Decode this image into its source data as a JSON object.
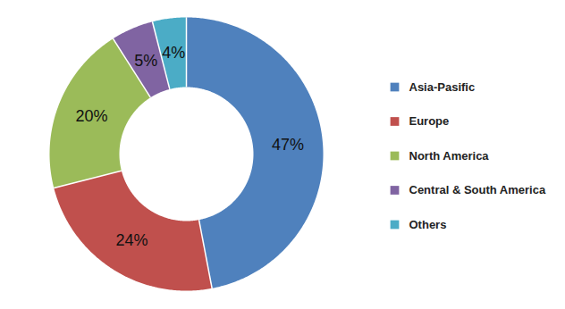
{
  "chart_data": {
    "type": "pie",
    "categories": [
      "Asia-Pasific",
      "Europe",
      "North America",
      "Central & South America",
      "Others"
    ],
    "values": [
      47,
      24,
      20,
      5,
      4
    ],
    "value_labels": [
      "47%",
      "24%",
      "20%",
      "5%",
      "4%"
    ],
    "colors": [
      "#4f81bd",
      "#c0504d",
      "#9bbb59",
      "#8064a2",
      "#4bacc6"
    ],
    "data_labels": true,
    "legend": "right"
  }
}
